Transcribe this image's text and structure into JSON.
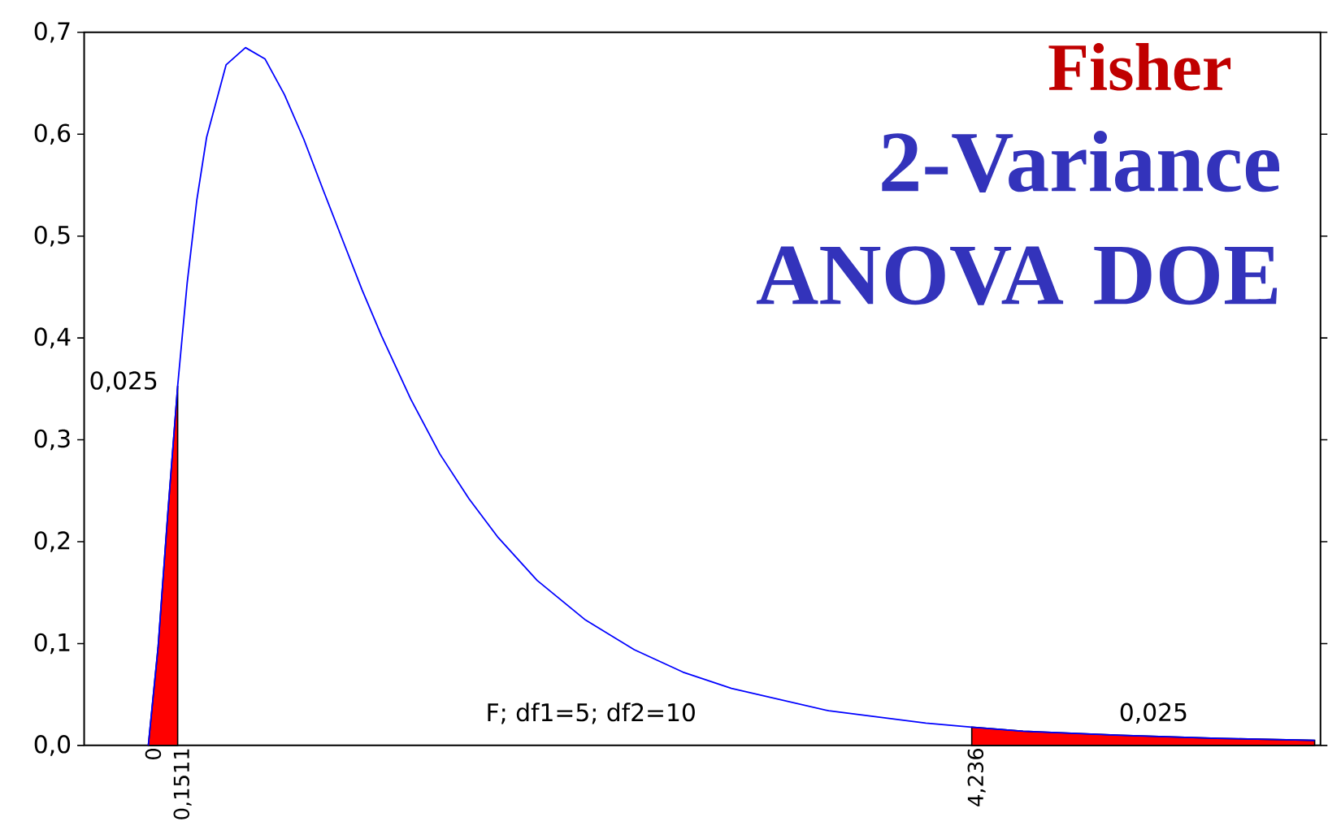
{
  "chart_data": {
    "type": "line",
    "title": "Fisher",
    "subtitle": "2-Variance ANOVA DOE",
    "xlim": [
      -0.33,
      6.03
    ],
    "ylim": [
      0,
      0.7
    ],
    "xticks": [
      0,
      {
        "value": 0.1511,
        "label": "0,1511"
      },
      {
        "value": 4.236,
        "label": "4,236"
      }
    ],
    "yticks": [
      {
        "value": 0,
        "label": "0,0"
      },
      {
        "value": 0.1,
        "label": "0,1"
      },
      {
        "value": 0.2,
        "label": "0,2"
      },
      {
        "value": 0.3,
        "label": "0,3"
      },
      {
        "value": 0.4,
        "label": "0,4"
      },
      {
        "value": 0.5,
        "label": "0,5"
      },
      {
        "value": 0.6,
        "label": "0,6"
      },
      {
        "value": 0.7,
        "label": "0,7"
      }
    ],
    "grid": false,
    "marker": "none",
    "line_style": "solid",
    "series": [
      {
        "type": "area",
        "color": "#ff0000",
        "x": [
          0,
          0.05,
          0.1,
          0.1511
        ],
        "values": [
          0,
          0.096,
          0.227,
          0.353
        ]
      },
      {
        "type": "area",
        "color": "#ff0000",
        "x": [
          4.236,
          4.5,
          5,
          5.5,
          6
        ],
        "values": [
          0.018,
          0.014,
          0.01,
          0.007,
          0.005
        ]
      },
      {
        "color": "#0000ff",
        "x": [
          0,
          0.05,
          0.1,
          0.1511,
          0.2,
          0.25,
          0.3,
          0.4,
          0.5,
          0.6,
          0.7,
          0.8,
          0.9,
          1,
          1.1,
          1.2,
          1.35,
          1.5,
          1.65,
          1.8,
          2,
          2.25,
          2.5,
          2.75,
          3,
          3.5,
          4,
          4.236,
          4.5,
          5,
          5.5,
          6
        ],
        "values": [
          0,
          0.096,
          0.227,
          0.353,
          0.454,
          0.536,
          0.597,
          0.668,
          0.685,
          0.674,
          0.639,
          0.595,
          0.545,
          0.496,
          0.447,
          0.402,
          0.34,
          0.286,
          0.242,
          0.204,
          0.162,
          0.123,
          0.094,
          0.072,
          0.056,
          0.034,
          0.022,
          0.018,
          0.014,
          0.01,
          0.007,
          0.005
        ]
      }
    ],
    "annotations": [
      "0,025",
      "0,025",
      "F; df1=5; df2=10"
    ]
  }
}
